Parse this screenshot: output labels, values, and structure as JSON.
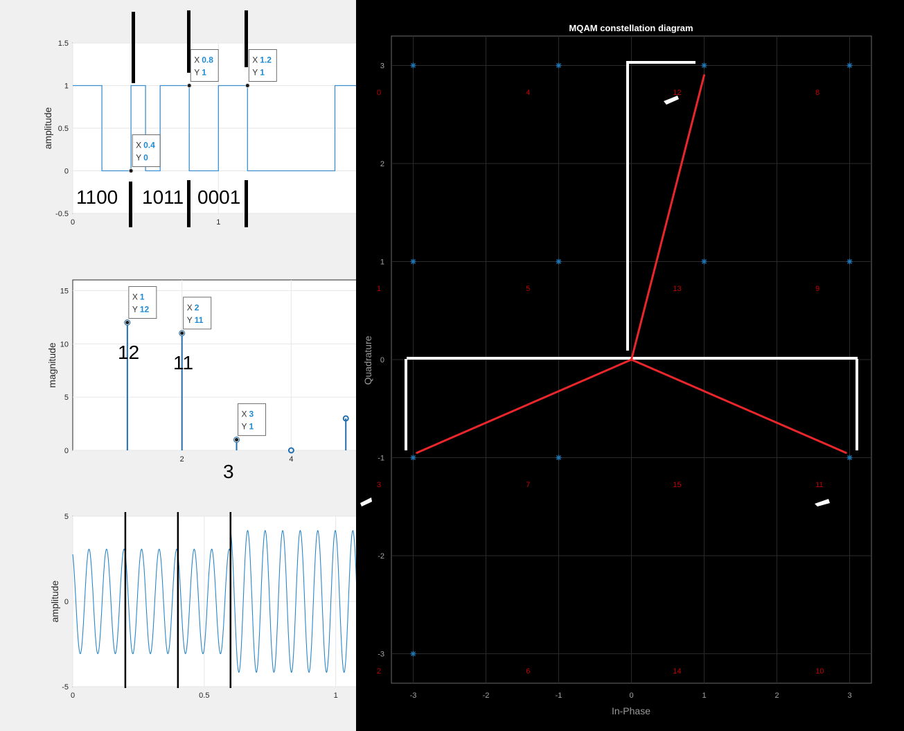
{
  "chart_data": [
    {
      "type": "line",
      "ylabel": "amplitude",
      "xlim": [
        0,
        1.95
      ],
      "ylim": [
        -0.5,
        1.5
      ],
      "xticks": [
        "0",
        "1"
      ],
      "yticks": [
        "-0.5",
        "0",
        "0.5",
        "1",
        "1.5"
      ],
      "series": [
        {
          "x": [
            0,
            0.2,
            0.2,
            0.4,
            0.4,
            0.5,
            0.5,
            0.6,
            0.6,
            0.8,
            0.8,
            1.0,
            1.0,
            1.2,
            1.2,
            1.8,
            1.8,
            1.95
          ],
          "y": [
            1,
            1,
            0,
            0,
            1,
            1,
            0,
            0,
            1,
            1,
            0,
            0,
            1,
            1,
            0,
            0,
            1,
            1
          ]
        }
      ],
      "datatips": [
        {
          "x_label": "X",
          "x_value": "0.8",
          "y_label": "Y",
          "y_value": "1",
          "px": 0.8,
          "py": 1
        },
        {
          "x_label": "X",
          "x_value": "1.2",
          "y_label": "Y",
          "y_value": "1",
          "px": 1.2,
          "py": 1
        },
        {
          "x_label": "X",
          "x_value": "0.4",
          "y_label": "Y",
          "y_value": "0",
          "px": 0.4,
          "py": 0
        }
      ],
      "annotations": [
        "1100",
        "1011",
        "0001"
      ]
    },
    {
      "type": "stem",
      "ylabel": "magnitude",
      "xlim": [
        0,
        5.2
      ],
      "ylim": [
        0,
        16
      ],
      "xticks": [
        "2",
        "4"
      ],
      "yticks": [
        "0",
        "5",
        "10",
        "15"
      ],
      "x": [
        1,
        2,
        3,
        4,
        5
      ],
      "y": [
        12,
        11,
        1,
        0,
        3
      ],
      "datatips": [
        {
          "x_label": "X",
          "x_value": "1",
          "y_label": "Y",
          "y_value": "12",
          "px": 1,
          "py": 12
        },
        {
          "x_label": "X",
          "x_value": "2",
          "y_label": "Y",
          "y_value": "11",
          "px": 2,
          "py": 11
        },
        {
          "x_label": "X",
          "x_value": "3",
          "y_label": "Y",
          "y_value": "1",
          "px": 3,
          "py": 1
        }
      ],
      "annotations": [
        "12",
        "11",
        "3"
      ]
    },
    {
      "type": "line",
      "ylabel": "amplitude",
      "xlim": [
        0,
        1.08
      ],
      "ylim": [
        -5,
        5
      ],
      "xticks": [
        "0",
        "0.5",
        "1"
      ],
      "yticks": [
        "-5",
        "0",
        "5"
      ],
      "signal": "16-QAM modulated carrier, approx. 6 cycles per 0.4 time units",
      "segments": [
        {
          "t_start": 0,
          "t_end": 0.6,
          "amplitude": 3.1
        },
        {
          "t_start": 0.6,
          "t_end": 1.08,
          "amplitude": 4.2
        }
      ],
      "markers_x": [
        0.2,
        0.4,
        0.6
      ]
    },
    {
      "type": "scatter",
      "title": "MQAM constellation diagram",
      "xlabel": "In-Phase",
      "ylabel": "Quadrature",
      "xlim": [
        -3.3,
        3.3
      ],
      "ylim": [
        -3.3,
        3.3
      ],
      "xticks": [
        "-3",
        "-2",
        "-1",
        "0",
        "1",
        "2",
        "3"
      ],
      "yticks": [
        "-3",
        "-2",
        "-1",
        "0",
        "1",
        "2",
        "3"
      ],
      "points": [
        {
          "x": -3,
          "y": 3
        },
        {
          "x": -1,
          "y": 3
        },
        {
          "x": 1,
          "y": 3
        },
        {
          "x": 3,
          "y": 3
        },
        {
          "x": -3,
          "y": 1
        },
        {
          "x": -1,
          "y": 1
        },
        {
          "x": 1,
          "y": 1
        },
        {
          "x": 3,
          "y": 1
        },
        {
          "x": -3,
          "y": -1
        },
        {
          "x": -1,
          "y": -1
        },
        {
          "x": 3,
          "y": -1
        },
        {
          "x": -3,
          "y": -3
        }
      ],
      "symbol_labels": [
        {
          "text": "0",
          "x": -3.5,
          "y": 2.7
        },
        {
          "text": "4",
          "x": -1.45,
          "y": 2.7
        },
        {
          "text": "12",
          "x": 0.57,
          "y": 2.7
        },
        {
          "text": "8",
          "x": 2.53,
          "y": 2.7
        },
        {
          "text": "1",
          "x": -3.5,
          "y": 0.7
        },
        {
          "text": "5",
          "x": -1.45,
          "y": 0.7
        },
        {
          "text": "13",
          "x": 0.57,
          "y": 0.7
        },
        {
          "text": "9",
          "x": 2.53,
          "y": 0.7
        },
        {
          "text": "3",
          "x": -3.5,
          "y": -1.3
        },
        {
          "text": "7",
          "x": -1.45,
          "y": -1.3
        },
        {
          "text": "15",
          "x": 0.57,
          "y": -1.3
        },
        {
          "text": "11",
          "x": 2.53,
          "y": -1.3
        },
        {
          "text": "2",
          "x": -3.5,
          "y": -3.2
        },
        {
          "text": "6",
          "x": -1.45,
          "y": -3.2
        },
        {
          "text": "14",
          "x": 0.57,
          "y": -3.2
        },
        {
          "text": "10",
          "x": 2.53,
          "y": -3.2
        }
      ],
      "vectors": [
        {
          "x": 1,
          "y": 2.9
        },
        {
          "x": -2.95,
          "y": -0.95
        },
        {
          "x": 2.95,
          "y": -0.95
        }
      ],
      "colors": {
        "points": "#1f77b4",
        "labels": "#c00000",
        "vectors": "#e8262b",
        "overlay": "#ffffff"
      }
    }
  ]
}
